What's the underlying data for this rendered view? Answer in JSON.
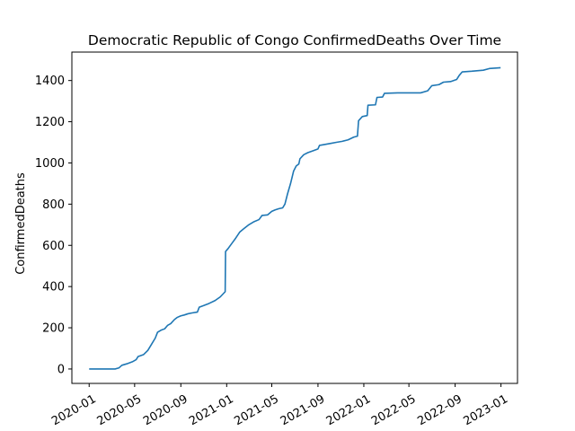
{
  "chart_data": {
    "type": "line",
    "title": "Democratic Republic of Congo  ConfirmedDeaths Over Time",
    "xlabel": "",
    "ylabel": "ConfirmedDeaths",
    "xlim": [
      "2019-11-16",
      "2023-02-14"
    ],
    "ylim": [
      -70,
      1538
    ],
    "grid": false,
    "line_color": "#1f77b4",
    "x_ticks": [
      "2020-01",
      "2020-05",
      "2020-09",
      "2021-01",
      "2021-05",
      "2021-09",
      "2022-01",
      "2022-05",
      "2022-09",
      "2023-01"
    ],
    "y_ticks": [
      0,
      200,
      400,
      600,
      800,
      1000,
      1200,
      1400
    ],
    "series": [
      {
        "name": "",
        "points": [
          [
            "2020-01-01",
            0
          ],
          [
            "2020-03-10",
            0
          ],
          [
            "2020-03-20",
            5
          ],
          [
            "2020-03-28",
            18
          ],
          [
            "2020-04-10",
            25
          ],
          [
            "2020-04-25",
            35
          ],
          [
            "2020-05-05",
            45
          ],
          [
            "2020-05-10",
            60
          ],
          [
            "2020-05-25",
            70
          ],
          [
            "2020-06-05",
            90
          ],
          [
            "2020-06-15",
            120
          ],
          [
            "2020-06-25",
            150
          ],
          [
            "2020-07-01",
            178
          ],
          [
            "2020-07-10",
            188
          ],
          [
            "2020-07-20",
            195
          ],
          [
            "2020-07-28",
            212
          ],
          [
            "2020-08-05",
            220
          ],
          [
            "2020-08-15",
            240
          ],
          [
            "2020-08-22",
            250
          ],
          [
            "2020-09-01",
            258
          ],
          [
            "2020-09-10",
            262
          ],
          [
            "2020-09-20",
            268
          ],
          [
            "2020-10-01",
            272
          ],
          [
            "2020-10-15",
            276
          ],
          [
            "2020-10-20",
            300
          ],
          [
            "2020-11-01",
            308
          ],
          [
            "2020-11-15",
            318
          ],
          [
            "2020-12-01",
            332
          ],
          [
            "2020-12-15",
            350
          ],
          [
            "2020-12-28",
            375
          ],
          [
            "2020-12-29",
            570
          ],
          [
            "2021-01-05",
            585
          ],
          [
            "2021-01-15",
            610
          ],
          [
            "2021-01-25",
            635
          ],
          [
            "2021-02-05",
            665
          ],
          [
            "2021-02-15",
            680
          ],
          [
            "2021-03-01",
            700
          ],
          [
            "2021-03-15",
            715
          ],
          [
            "2021-03-28",
            725
          ],
          [
            "2021-04-05",
            745
          ],
          [
            "2021-04-20",
            748
          ],
          [
            "2021-05-01",
            765
          ],
          [
            "2021-05-10",
            772
          ],
          [
            "2021-05-20",
            778
          ],
          [
            "2021-05-30",
            782
          ],
          [
            "2021-06-05",
            800
          ],
          [
            "2021-06-12",
            850
          ],
          [
            "2021-06-20",
            900
          ],
          [
            "2021-06-28",
            960
          ],
          [
            "2021-07-05",
            985
          ],
          [
            "2021-07-12",
            995
          ],
          [
            "2021-07-15",
            1020
          ],
          [
            "2021-07-25",
            1040
          ],
          [
            "2021-08-05",
            1050
          ],
          [
            "2021-08-20",
            1060
          ],
          [
            "2021-09-01",
            1068
          ],
          [
            "2021-09-05",
            1085
          ],
          [
            "2021-09-20",
            1090
          ],
          [
            "2021-10-05",
            1095
          ],
          [
            "2021-10-20",
            1100
          ],
          [
            "2021-11-05",
            1105
          ],
          [
            "2021-11-20",
            1112
          ],
          [
            "2021-12-05",
            1125
          ],
          [
            "2021-12-15",
            1130
          ],
          [
            "2021-12-18",
            1205
          ],
          [
            "2021-12-28",
            1225
          ],
          [
            "2022-01-10",
            1230
          ],
          [
            "2022-01-12",
            1280
          ],
          [
            "2022-02-01",
            1282
          ],
          [
            "2022-02-05",
            1318
          ],
          [
            "2022-02-20",
            1320
          ],
          [
            "2022-02-25",
            1338
          ],
          [
            "2022-04-01",
            1340
          ],
          [
            "2022-06-01",
            1340
          ],
          [
            "2022-06-20",
            1350
          ],
          [
            "2022-07-01",
            1375
          ],
          [
            "2022-07-20",
            1380
          ],
          [
            "2022-08-01",
            1392
          ],
          [
            "2022-08-20",
            1395
          ],
          [
            "2022-09-05",
            1405
          ],
          [
            "2022-09-12",
            1425
          ],
          [
            "2022-09-20",
            1442
          ],
          [
            "2022-10-15",
            1445
          ],
          [
            "2022-11-15",
            1450
          ],
          [
            "2022-12-01",
            1458
          ],
          [
            "2022-12-31",
            1462
          ]
        ]
      }
    ]
  }
}
